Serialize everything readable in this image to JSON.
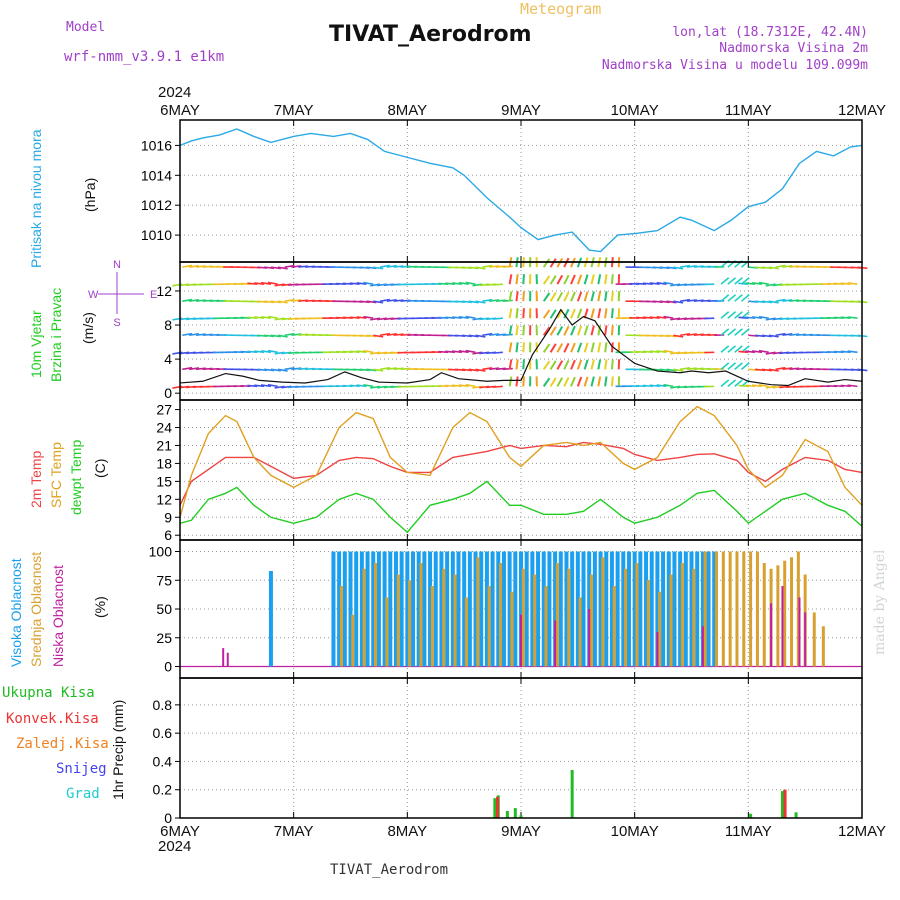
{
  "header": {
    "model_label": "Model",
    "model_name": "wrf-nmm_v3.9.1 e1km",
    "title": "TIVAT_Aerodrom",
    "subtitle": "Meteogram",
    "lonlat": "lon,lat (18.7312E, 42.4N)",
    "elev_station": "Nadmorska Visina 2m",
    "elev_model": "Nadmorska Visina u modelu 109.099m",
    "year_top": "2024",
    "year_bottom": "2024",
    "footer_station": "TIVAT_Aerodrom",
    "credit": "made by Angel"
  },
  "colors": {
    "pressure": "#29a9e6",
    "temp2m": "#ee4444",
    "sfc_temp": "#e0a020",
    "dewpoint": "#22cc22",
    "cloud_high": "#1aa0ee",
    "cloud_mid": "#d8a030",
    "cloud_low": "#c020a0",
    "purple": "#a040c8",
    "precip_total": "#22bb22",
    "precip_conv": "#ee3333",
    "precip_frz": "#f08020",
    "snow": "#4444ee",
    "hail": "#22cccc"
  },
  "panel_labels": {
    "pressure": [
      "Pritisak na nivou mora",
      "(hPa)"
    ],
    "wind": [
      "10m Vjetar",
      "Brzina i Pravac",
      "(m/s)"
    ],
    "compass": "N",
    "compass_s": "S",
    "compass_w": "W",
    "compass_e": "E",
    "temp": [
      "2m Temp",
      "SFC Temp",
      "dewpt Temp",
      "(C)"
    ],
    "cloud": [
      "Visoka Oblacnost",
      "Srednja Oblacnost",
      "Niska Oblacnost",
      "(%)"
    ],
    "precip": [
      "Ukupna Kisa",
      "Konvek.Kisa",
      "Zaledj.Kisa",
      "Snijeg",
      "Grad",
      "1hr Precip (mm)"
    ]
  },
  "chart_data": [
    {
      "type": "line",
      "panel": "pressure",
      "ylabel": "Pritisak na nivou mora (hPa)",
      "xlim": [
        "6MAY",
        "12MAY"
      ],
      "ylim": [
        1008.2,
        1017.7
      ],
      "yticks": [
        1010,
        1012,
        1014,
        1016
      ],
      "xticks": [
        "6MAY",
        "7MAY",
        "8MAY",
        "9MAY",
        "10MAY",
        "11MAY",
        "12MAY"
      ],
      "grid": true,
      "x": [
        0,
        0.1,
        0.2,
        0.35,
        0.5,
        0.65,
        0.8,
        1.0,
        1.15,
        1.35,
        1.5,
        1.65,
        1.8,
        2.0,
        2.2,
        2.4,
        2.5,
        2.7,
        2.9,
        3.0,
        3.15,
        3.3,
        3.45,
        3.6,
        3.7,
        3.85,
        4.0,
        4.2,
        4.4,
        4.5,
        4.7,
        4.85,
        5.0,
        5.15,
        5.3,
        5.45,
        5.6,
        5.75,
        5.9,
        6.0
      ],
      "series": [
        {
          "values": [
            1016.0,
            1016.3,
            1016.5,
            1016.7,
            1017.1,
            1016.6,
            1016.2,
            1016.6,
            1016.8,
            1016.6,
            1016.8,
            1016.4,
            1015.6,
            1015.2,
            1014.8,
            1014.5,
            1014.0,
            1012.5,
            1011.2,
            1010.5,
            1009.7,
            1010.0,
            1010.2,
            1009.0,
            1008.9,
            1010.0,
            1010.1,
            1010.3,
            1011.2,
            1011.0,
            1010.3,
            1011.0,
            1011.9,
            1012.2,
            1013.1,
            1014.8,
            1015.6,
            1015.3,
            1015.9,
            1016.0
          ]
        }
      ]
    },
    {
      "type": "line",
      "panel": "wind",
      "ylabel": "10m Vjetar Brzina i Pravac (m/s)",
      "ylim": [
        -0.8,
        15.4
      ],
      "yticks": [
        0,
        4,
        8,
        12
      ],
      "grid": true,
      "x": [
        0,
        0.2,
        0.4,
        0.55,
        0.7,
        0.9,
        1.1,
        1.3,
        1.45,
        1.6,
        1.75,
        2.0,
        2.2,
        2.3,
        2.45,
        2.7,
        2.85,
        3.0,
        3.1,
        3.25,
        3.35,
        3.45,
        3.55,
        3.65,
        3.8,
        4.0,
        4.2,
        4.4,
        4.5,
        4.65,
        4.8,
        5.0,
        5.2,
        5.35,
        5.5,
        5.7,
        5.85,
        6.0
      ],
      "series": [
        {
          "name": "wind speed",
          "values": [
            1.2,
            1.4,
            2.3,
            2.0,
            1.5,
            1.3,
            1.2,
            1.6,
            2.5,
            1.8,
            1.3,
            1.2,
            1.6,
            2.4,
            1.7,
            1.4,
            1.5,
            1.5,
            4.5,
            7.5,
            9.8,
            8.0,
            9.0,
            8.5,
            5.5,
            3.5,
            2.6,
            2.4,
            2.6,
            2.4,
            2.6,
            1.4,
            1.0,
            0.9,
            1.7,
            1.3,
            1.6,
            1.4
          ]
        }
      ]
    },
    {
      "type": "line",
      "panel": "temperature",
      "ylabel": "2m Temp / SFC Temp / dewpt Temp (C)",
      "ylim": [
        5.2,
        28.6
      ],
      "yticks": [
        6,
        9,
        12,
        15,
        18,
        21,
        24,
        27
      ],
      "grid": true,
      "x": [
        0,
        0.1,
        0.25,
        0.4,
        0.5,
        0.65,
        0.8,
        1.0,
        1.2,
        1.4,
        1.55,
        1.7,
        1.85,
        2.0,
        2.2,
        2.4,
        2.55,
        2.7,
        2.9,
        3.0,
        3.2,
        3.4,
        3.55,
        3.7,
        3.9,
        4.0,
        4.2,
        4.4,
        4.55,
        4.7,
        4.9,
        5.0,
        5.15,
        5.3,
        5.5,
        5.7,
        5.85,
        6.0
      ],
      "series": [
        {
          "name": "2m Temp",
          "values": [
            11,
            15,
            17,
            19,
            19,
            19,
            17.5,
            15.5,
            16,
            18.5,
            19,
            18.8,
            17.5,
            16.5,
            16.5,
            19,
            19.5,
            20,
            21,
            20.5,
            21,
            20.8,
            21.5,
            21.2,
            20.5,
            19.5,
            18.5,
            19,
            19.5,
            19.6,
            18.5,
            16.5,
            15,
            17,
            19,
            18.5,
            17,
            16.5
          ]
        },
        {
          "name": "SFC Temp",
          "values": [
            9,
            16,
            23,
            26,
            25,
            19,
            16,
            14,
            16,
            24,
            26.5,
            25.5,
            19,
            16.5,
            16,
            24,
            26.5,
            25,
            19,
            17.5,
            21,
            21.5,
            21,
            21.5,
            18,
            17,
            19,
            25,
            27.5,
            26,
            21,
            17,
            14,
            16,
            22,
            20,
            14,
            11
          ]
        },
        {
          "name": "dewpt Temp",
          "values": [
            8,
            8.5,
            12,
            13,
            14,
            11,
            9,
            8,
            9,
            12,
            13,
            12,
            9,
            6.5,
            11,
            12,
            13,
            15,
            11,
            11,
            9.5,
            9.5,
            10,
            12,
            9,
            8,
            9,
            11,
            13,
            13.5,
            10,
            8,
            10,
            12,
            13,
            11,
            10,
            7.5
          ]
        }
      ]
    },
    {
      "type": "bar",
      "panel": "cloud",
      "ylabel": "Visoka / Srednja / Niska Oblacnost (%)",
      "ylim": [
        -10,
        110
      ],
      "yticks": [
        0,
        25,
        50,
        75,
        100
      ],
      "grid": true,
      "series": [
        {
          "name": "Visoka Oblacnost",
          "x": [
            0.8,
            1.35,
            1.4,
            1.45,
            1.5,
            1.55,
            1.6,
            1.65,
            1.7,
            1.75,
            1.8,
            1.85,
            1.9,
            1.95,
            2.0,
            2.05,
            2.1,
            2.15,
            2.2,
            2.25,
            2.3,
            2.35,
            2.4,
            2.45,
            2.5,
            2.55,
            2.6,
            2.65,
            2.7,
            2.75,
            2.8,
            2.85,
            2.9,
            2.95,
            3.0,
            3.05,
            3.1,
            3.15,
            3.2,
            3.25,
            3.3,
            3.35,
            3.4,
            3.45,
            3.5,
            3.55,
            3.6,
            3.65,
            3.7,
            3.75,
            3.8,
            3.85,
            3.9,
            3.95,
            4.0,
            4.05,
            4.1,
            4.15,
            4.2,
            4.25,
            4.3,
            4.35,
            4.4,
            4.45,
            4.5,
            4.55,
            4.6,
            4.65,
            4.7
          ],
          "values": [
            83,
            100,
            100,
            100,
            100,
            100,
            100,
            100,
            100,
            100,
            100,
            100,
            100,
            100,
            100,
            100,
            100,
            100,
            100,
            100,
            100,
            100,
            100,
            100,
            100,
            100,
            100,
            100,
            100,
            100,
            100,
            100,
            100,
            100,
            100,
            100,
            100,
            100,
            100,
            100,
            100,
            100,
            100,
            100,
            100,
            100,
            100,
            100,
            100,
            100,
            100,
            100,
            100,
            100,
            100,
            100,
            100,
            100,
            100,
            100,
            100,
            100,
            100,
            100,
            100,
            100,
            100,
            100,
            100
          ]
        },
        {
          "name": "Srednja Oblacnost",
          "x": [
            1.42,
            1.52,
            1.62,
            1.72,
            1.82,
            1.92,
            2.02,
            2.12,
            2.22,
            2.32,
            2.42,
            2.52,
            2.62,
            2.72,
            2.82,
            2.92,
            3.02,
            3.12,
            3.22,
            3.32,
            3.42,
            3.52,
            3.62,
            3.72,
            3.82,
            3.92,
            4.02,
            4.12,
            4.22,
            4.32,
            4.42,
            4.52,
            4.62,
            4.72,
            4.78,
            4.84,
            4.9,
            4.96,
            5.02,
            5.08,
            5.14,
            5.2,
            5.26,
            5.32,
            5.38,
            5.44,
            5.5,
            5.58,
            5.66
          ],
          "values": [
            70,
            45,
            85,
            90,
            60,
            80,
            75,
            90,
            70,
            85,
            80,
            60,
            95,
            70,
            90,
            65,
            85,
            80,
            70,
            90,
            85,
            60,
            80,
            95,
            70,
            85,
            90,
            75,
            65,
            80,
            90,
            85,
            100,
            100,
            100,
            100,
            100,
            100,
            100,
            100,
            90,
            85,
            88,
            92,
            95,
            100,
            80,
            47,
            35
          ]
        },
        {
          "name": "Niska Oblacnost",
          "x": [
            0.38,
            0.42,
            3.0,
            3.3,
            3.6,
            4.2,
            4.6,
            5.2,
            5.3,
            5.45,
            5.5
          ],
          "values": [
            16,
            12,
            45,
            40,
            50,
            30,
            35,
            55,
            70,
            60,
            47
          ]
        }
      ]
    },
    {
      "type": "bar",
      "panel": "precip",
      "ylabel": "1hr Precip (mm)",
      "ylim": [
        0,
        0.99
      ],
      "yticks": [
        0,
        0.2,
        0.4,
        0.6,
        0.8
      ],
      "grid": true,
      "series": [
        {
          "name": "Ukupna Kisa",
          "x": [
            2.77,
            2.8,
            2.88,
            2.95,
            3.0,
            3.45,
            5.02,
            5.3,
            5.32,
            5.42
          ],
          "values": [
            0.14,
            0.16,
            0.05,
            0.07,
            0.02,
            0.34,
            0.03,
            0.19,
            0.2,
            0.04
          ]
        },
        {
          "name": "Konvek.Kisa",
          "x": [
            2.78,
            5.31
          ],
          "values": [
            0.15,
            0.2
          ]
        }
      ]
    }
  ]
}
